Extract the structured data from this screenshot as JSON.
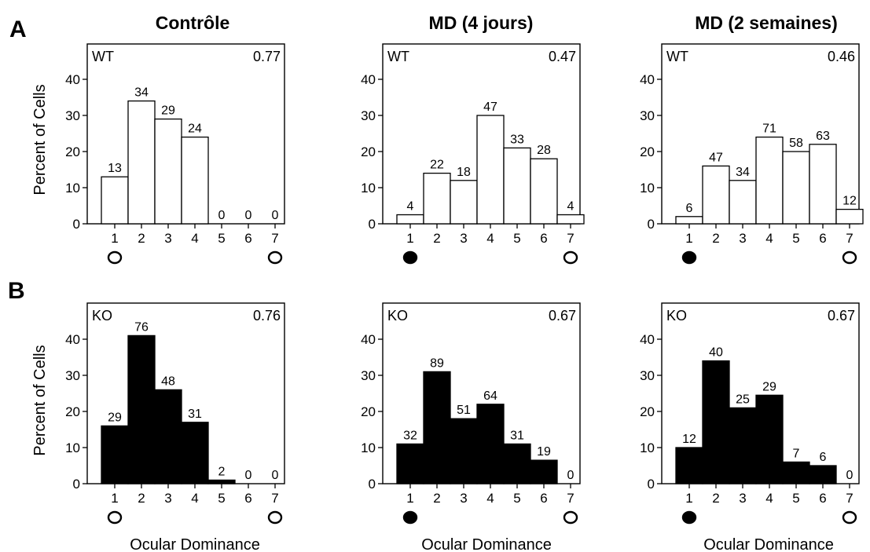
{
  "row_labels": [
    "A",
    "B"
  ],
  "column_titles": [
    "Contrôle",
    "MD (4 jours)",
    "MD (2 semaines)"
  ],
  "ylabel": "Percent of Cells",
  "xlabel": "Ocular Dominance",
  "colors": {
    "wt_bar": "#ffffff",
    "ko_bar": "#000000",
    "stroke": "#000000"
  },
  "chart_data": [
    {
      "type": "bar",
      "row": 0,
      "col": 0,
      "genotype": "WT",
      "index": "0.77",
      "categories": [
        "1",
        "2",
        "3",
        "4",
        "5",
        "6",
        "7"
      ],
      "values": [
        13,
        34,
        29,
        24,
        0,
        0,
        0
      ],
      "bar_labels": [
        "13",
        "34",
        "29",
        "24",
        "0",
        "0",
        "0"
      ],
      "ylim": [
        0,
        40
      ],
      "yticks": [
        0,
        10,
        20,
        30,
        40
      ],
      "markers": [
        "open",
        null,
        null,
        null,
        null,
        null,
        "open"
      ]
    },
    {
      "type": "bar",
      "row": 0,
      "col": 1,
      "genotype": "WT",
      "index": "0.47",
      "categories": [
        "1",
        "2",
        "3",
        "4",
        "5",
        "6",
        "7"
      ],
      "values": [
        2.5,
        14,
        12,
        30,
        21,
        18,
        2.5
      ],
      "bar_labels": [
        "4",
        "22",
        "18",
        "47",
        "33",
        "28",
        "4"
      ],
      "ylim": [
        0,
        40
      ],
      "yticks": [
        0,
        10,
        20,
        30,
        40
      ],
      "markers": [
        "filled",
        null,
        null,
        null,
        null,
        null,
        "open"
      ]
    },
    {
      "type": "bar",
      "row": 0,
      "col": 2,
      "genotype": "WT",
      "index": "0.46",
      "categories": [
        "1",
        "2",
        "3",
        "4",
        "5",
        "6",
        "7"
      ],
      "values": [
        2,
        16,
        12,
        24,
        20,
        22,
        4
      ],
      "bar_labels": [
        "6",
        "47",
        "34",
        "71",
        "58",
        "63",
        "12"
      ],
      "ylim": [
        0,
        40
      ],
      "yticks": [
        0,
        10,
        20,
        30,
        40
      ],
      "markers": [
        "filled",
        null,
        null,
        null,
        null,
        null,
        "open"
      ]
    },
    {
      "type": "bar",
      "row": 1,
      "col": 0,
      "genotype": "KO",
      "index": "0.76",
      "categories": [
        "1",
        "2",
        "3",
        "4",
        "5",
        "6",
        "7"
      ],
      "values": [
        16,
        41,
        26,
        17,
        1,
        0,
        0
      ],
      "bar_labels": [
        "29",
        "76",
        "48",
        "31",
        "2",
        "0",
        "0"
      ],
      "ylim": [
        0,
        40
      ],
      "yticks": [
        0,
        10,
        20,
        30,
        40
      ],
      "markers": [
        "open",
        null,
        null,
        null,
        null,
        null,
        "open"
      ]
    },
    {
      "type": "bar",
      "row": 1,
      "col": 1,
      "genotype": "KO",
      "index": "0.67",
      "categories": [
        "1",
        "2",
        "3",
        "4",
        "5",
        "6",
        "7"
      ],
      "values": [
        11,
        31,
        18,
        22,
        11,
        6.5,
        0
      ],
      "bar_labels": [
        "32",
        "89",
        "51",
        "64",
        "31",
        "19",
        "0"
      ],
      "ylim": [
        0,
        40
      ],
      "yticks": [
        0,
        10,
        20,
        30,
        40
      ],
      "markers": [
        "filled",
        null,
        null,
        null,
        null,
        null,
        "open"
      ]
    },
    {
      "type": "bar",
      "row": 1,
      "col": 2,
      "genotype": "KO",
      "index": "0.67",
      "categories": [
        "1",
        "2",
        "3",
        "4",
        "5",
        "6",
        "7"
      ],
      "values": [
        10,
        34,
        21,
        24.5,
        6,
        5,
        0
      ],
      "bar_labels": [
        "12",
        "40",
        "25",
        "29",
        "7",
        "6",
        "0"
      ],
      "ylim": [
        0,
        40
      ],
      "yticks": [
        0,
        10,
        20,
        30,
        40
      ],
      "markers": [
        "filled",
        null,
        null,
        null,
        null,
        null,
        "open"
      ]
    }
  ]
}
